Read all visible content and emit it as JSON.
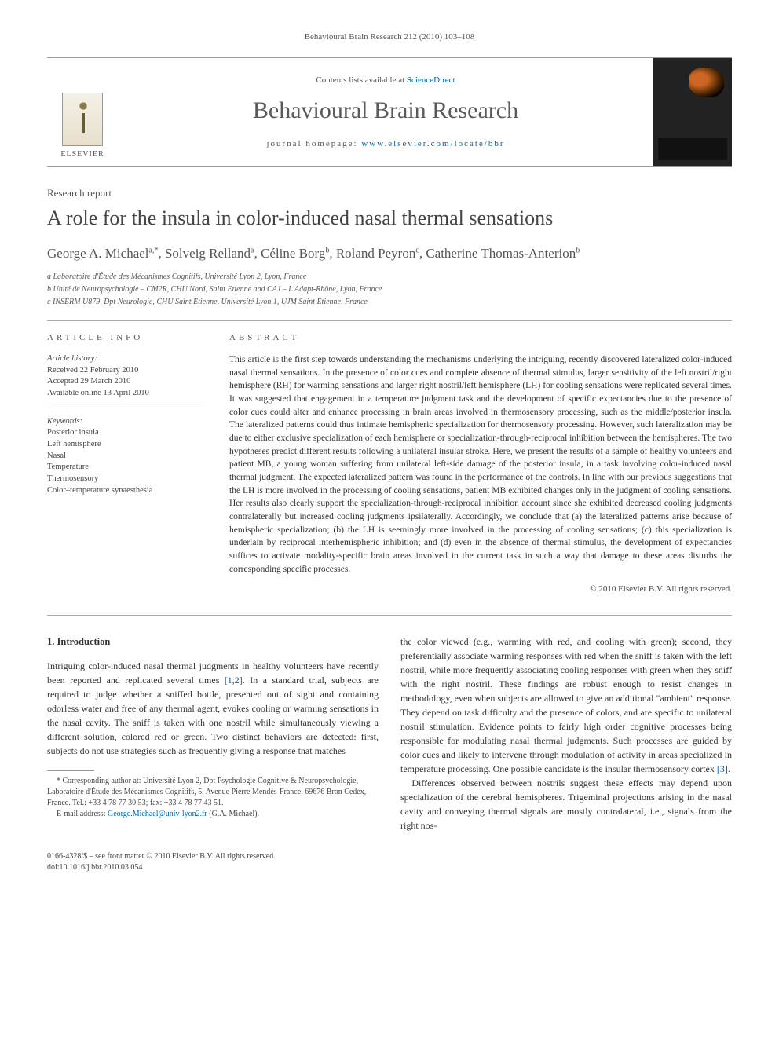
{
  "running_header": "Behavioural Brain Research 212 (2010) 103–108",
  "masthead": {
    "publisher": "ELSEVIER",
    "contents_prefix": "Contents lists available at ",
    "contents_link": "ScienceDirect",
    "journal": "Behavioural Brain Research",
    "homepage_prefix": "journal homepage: ",
    "homepage_url": "www.elsevier.com/locate/bbr"
  },
  "article_type": "Research report",
  "title": "A role for the insula in color-induced nasal thermal sensations",
  "authors_html": "George A. Michael<sup>a,*</sup>, Solveig Relland<sup>a</sup>, Céline Borg<sup>b</sup>, Roland Peyron<sup>c</sup>, Catherine Thomas-Anterion<sup>b</sup>",
  "affiliations": [
    "a Laboratoire d'Étude des Mécanismes Cognitifs, Université Lyon 2, Lyon, France",
    "b Unité de Neuropsychologie – CM2R, CHU Nord, Saint Etienne and CAJ – L'Adapt-Rhône, Lyon, France",
    "c INSERM U879, Dpt Neurologie, CHU Saint Etienne, Université Lyon 1, UJM Saint Etienne, France"
  ],
  "article_info_heading": "ARTICLE INFO",
  "abstract_heading": "ABSTRACT",
  "history": {
    "label": "Article history:",
    "received": "Received 22 February 2010",
    "accepted": "Accepted 29 March 2010",
    "online": "Available online 13 April 2010"
  },
  "keywords": {
    "label": "Keywords:",
    "items": [
      "Posterior insula",
      "Left hemisphere",
      "Nasal",
      "Temperature",
      "Thermosensory",
      "Color–temperature synaesthesia"
    ]
  },
  "abstract": "This article is the first step towards understanding the mechanisms underlying the intriguing, recently discovered lateralized color-induced nasal thermal sensations. In the presence of color cues and complete absence of thermal stimulus, larger sensitivity of the left nostril/right hemisphere (RH) for warming sensations and larger right nostril/left hemisphere (LH) for cooling sensations were replicated several times. It was suggested that engagement in a temperature judgment task and the development of specific expectancies due to the presence of color cues could alter and enhance processing in brain areas involved in thermosensory processing, such as the middle/posterior insula. The lateralized patterns could thus intimate hemispheric specialization for thermosensory processing. However, such lateralization may be due to either exclusive specialization of each hemisphere or specialization-through-reciprocal inhibition between the hemispheres. The two hypotheses predict different results following a unilateral insular stroke. Here, we present the results of a sample of healthy volunteers and patient MB, a young woman suffering from unilateral left-side damage of the posterior insula, in a task involving color-induced nasal thermal judgment. The expected lateralized pattern was found in the performance of the controls. In line with our previous suggestions that the LH is more involved in the processing of cooling sensations, patient MB exhibited changes only in the judgment of cooling sensations. Her results also clearly support the specialization-through-reciprocal inhibition account since she exhibited decreased cooling judgments contralaterally but increased cooling judgments ipsilaterally. Accordingly, we conclude that (a) the lateralized patterns arise because of hemispheric specialization; (b) the LH is seemingly more involved in the processing of cooling sensations; (c) this specialization is underlain by reciprocal interhemispheric inhibition; and (d) even in the absence of thermal stimulus, the development of expectancies suffices to activate modality-specific brain areas involved in the current task in such a way that damage to these areas disturbs the corresponding specific processes.",
  "copyright": "© 2010 Elsevier B.V. All rights reserved.",
  "section1": {
    "heading": "1. Introduction",
    "para1": "Intriguing color-induced nasal thermal judgments in healthy volunteers have recently been reported and replicated several times [1,2]. In a standard trial, subjects are required to judge whether a sniffed bottle, presented out of sight and containing odorless water and free of any thermal agent, evokes cooling or warming sensations in the nasal cavity. The sniff is taken with one nostril while simultaneously viewing a different solution, colored red or green. Two distinct behaviors are detected: first, subjects do not use strategies such as frequently giving a response that matches",
    "para2": "the color viewed (e.g., warming with red, and cooling with green); second, they preferentially associate warming responses with red when the sniff is taken with the left nostril, while more frequently associating cooling responses with green when they sniff with the right nostril. These findings are robust enough to resist changes in methodology, even when subjects are allowed to give an additional \"ambient\" response. They depend on task difficulty and the presence of colors, and are specific to unilateral nostril stimulation. Evidence points to fairly high order cognitive processes being responsible for modulating nasal thermal judgments. Such processes are guided by color cues and likely to intervene through modulation of activity in areas specialized in temperature processing. One possible candidate is the insular thermosensory cortex [3].",
    "para3": "Differences observed between nostrils suggest these effects may depend upon specialization of the cerebral hemispheres. Trigeminal projections arising in the nasal cavity and conveying thermal signals are mostly contralateral, i.e., signals from the right nos-"
  },
  "footnote": {
    "corr": "* Corresponding author at: Université Lyon 2, Dpt Psychologie Cognitive & Neuropsychologie, Laboratoire d'Étude des Mécanismes Cognitifs, 5, Avenue Pierre Mendès-France, 69676 Bron Cedex, France. Tel.: +33 4 78 77 30 53; fax: +33 4 78 77 43 51.",
    "email_label": "E-mail address: ",
    "email": "George.Michael@univ-lyon2.fr",
    "email_paren": " (G.A. Michael)."
  },
  "doi": {
    "line1": "0166-4328/$ – see front matter © 2010 Elsevier B.V. All rights reserved.",
    "line2": "doi:10.1016/j.bbr.2010.03.054"
  },
  "colors": {
    "link": "#0066aa",
    "text": "#333333",
    "muted": "#555555",
    "rule": "#aaaaaa"
  }
}
